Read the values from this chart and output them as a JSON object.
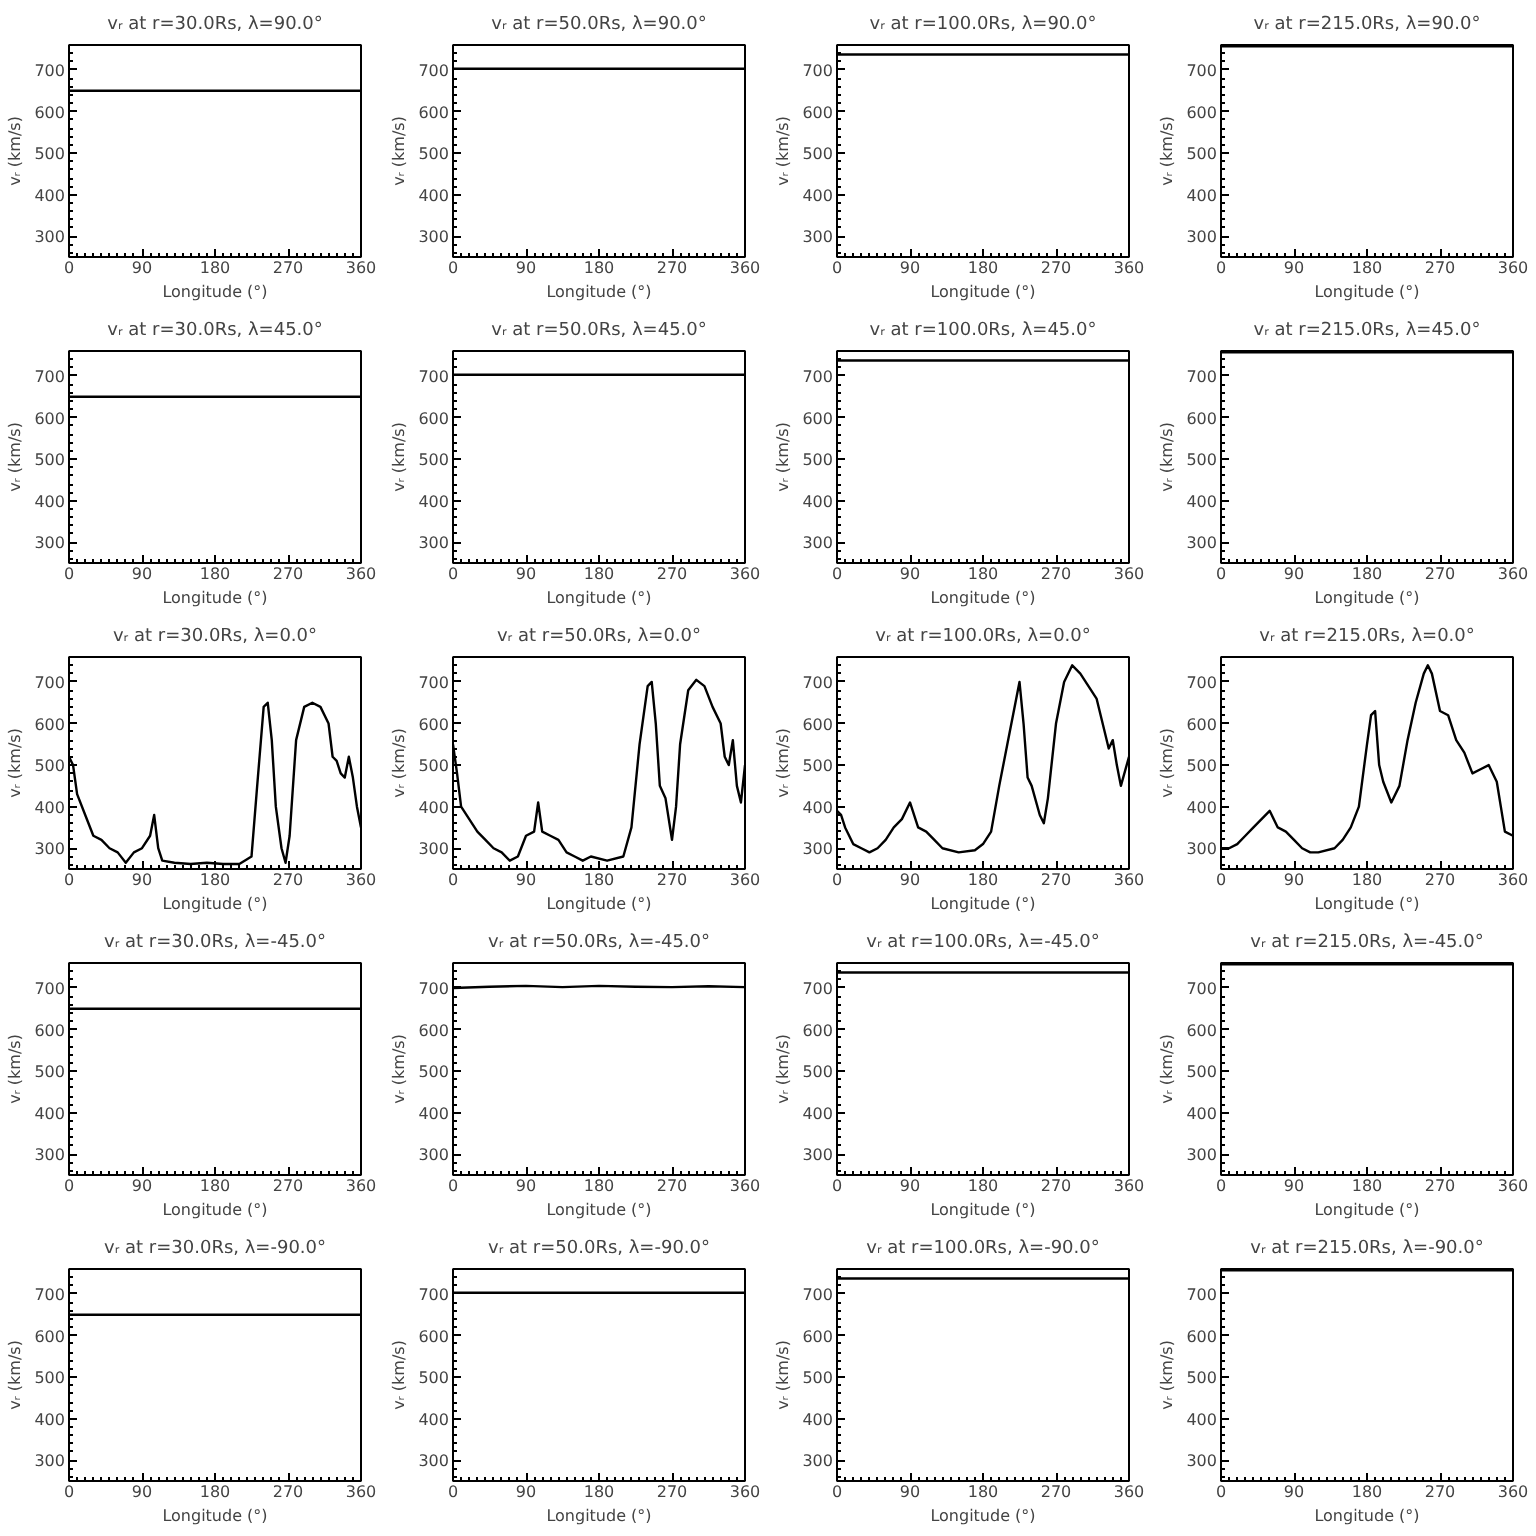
{
  "chart_data": [
    {
      "type": "line",
      "title": "vᵣ at r=30.0Rs, λ=90.0°",
      "xlabel": "Longitude (°)",
      "ylabel": "vᵣ (km/s)",
      "x": [
        0,
        360
      ],
      "values": [
        650,
        650
      ],
      "color": "#000000",
      "xlim": [
        0,
        360
      ],
      "ylim": [
        250,
        760
      ],
      "xticks": [
        0,
        90,
        180,
        270,
        360
      ],
      "yticks": [
        300,
        400,
        500,
        600,
        700
      ],
      "grid": false
    },
    {
      "type": "line",
      "title": "vᵣ at r=50.0Rs, λ=90.0°",
      "xlabel": "Longitude (°)",
      "ylabel": "vᵣ (km/s)",
      "x": [
        0,
        360
      ],
      "values": [
        703,
        703
      ],
      "color": "#000000",
      "xlim": [
        0,
        360
      ],
      "ylim": [
        250,
        760
      ],
      "xticks": [
        0,
        90,
        180,
        270,
        360
      ],
      "yticks": [
        300,
        400,
        500,
        600,
        700
      ],
      "grid": false
    },
    {
      "type": "line",
      "title": "vᵣ at r=100.0Rs, λ=90.0°",
      "xlabel": "Longitude (°)",
      "ylabel": "vᵣ (km/s)",
      "x": [
        0,
        360
      ],
      "values": [
        737,
        737
      ],
      "color": "#000000",
      "xlim": [
        0,
        360
      ],
      "ylim": [
        250,
        760
      ],
      "xticks": [
        0,
        90,
        180,
        270,
        360
      ],
      "yticks": [
        300,
        400,
        500,
        600,
        700
      ],
      "grid": false
    },
    {
      "type": "line",
      "title": "vᵣ at r=215.0Rs, λ=90.0°",
      "xlabel": "Longitude (°)",
      "ylabel": "vᵣ (km/s)",
      "x": [
        0,
        360
      ],
      "values": [
        757,
        757
      ],
      "color": "#000000",
      "xlim": [
        0,
        360
      ],
      "ylim": [
        250,
        760
      ],
      "xticks": [
        0,
        90,
        180,
        270,
        360
      ],
      "yticks": [
        300,
        400,
        500,
        600,
        700
      ],
      "grid": false
    },
    {
      "type": "line",
      "title": "vᵣ at r=30.0Rs, λ=45.0°",
      "xlabel": "Longitude (°)",
      "ylabel": "vᵣ (km/s)",
      "x": [
        0,
        360
      ],
      "values": [
        650,
        650
      ],
      "color": "#000000",
      "xlim": [
        0,
        360
      ],
      "ylim": [
        250,
        760
      ],
      "xticks": [
        0,
        90,
        180,
        270,
        360
      ],
      "yticks": [
        300,
        400,
        500,
        600,
        700
      ],
      "grid": false
    },
    {
      "type": "line",
      "title": "vᵣ at r=50.0Rs, λ=45.0°",
      "xlabel": "Longitude (°)",
      "ylabel": "vᵣ (km/s)",
      "x": [
        0,
        360
      ],
      "values": [
        703,
        703
      ],
      "color": "#000000",
      "xlim": [
        0,
        360
      ],
      "ylim": [
        250,
        760
      ],
      "xticks": [
        0,
        90,
        180,
        270,
        360
      ],
      "yticks": [
        300,
        400,
        500,
        600,
        700
      ],
      "grid": false
    },
    {
      "type": "line",
      "title": "vᵣ at r=100.0Rs, λ=45.0°",
      "xlabel": "Longitude (°)",
      "ylabel": "vᵣ (km/s)",
      "x": [
        0,
        360
      ],
      "values": [
        737,
        737
      ],
      "color": "#000000",
      "xlim": [
        0,
        360
      ],
      "ylim": [
        250,
        760
      ],
      "xticks": [
        0,
        90,
        180,
        270,
        360
      ],
      "yticks": [
        300,
        400,
        500,
        600,
        700
      ],
      "grid": false
    },
    {
      "type": "line",
      "title": "vᵣ at r=215.0Rs, λ=45.0°",
      "xlabel": "Longitude (°)",
      "ylabel": "vᵣ (km/s)",
      "x": [
        0,
        360
      ],
      "values": [
        757,
        757
      ],
      "color": "#000000",
      "xlim": [
        0,
        360
      ],
      "ylim": [
        250,
        760
      ],
      "xticks": [
        0,
        90,
        180,
        270,
        360
      ],
      "yticks": [
        300,
        400,
        500,
        600,
        700
      ],
      "grid": false
    },
    {
      "type": "line",
      "title": "vᵣ at r=30.0Rs, λ=0.0°",
      "xlabel": "Longitude (°)",
      "ylabel": "vᵣ (km/s)",
      "x": [
        0,
        5,
        10,
        20,
        30,
        40,
        50,
        60,
        70,
        80,
        90,
        100,
        105,
        110,
        115,
        130,
        150,
        170,
        190,
        210,
        225,
        232,
        240,
        245,
        250,
        255,
        262,
        267,
        272,
        280,
        290,
        300,
        310,
        320,
        325,
        330,
        335,
        340,
        345,
        350,
        355,
        360
      ],
      "values": [
        520,
        500,
        430,
        380,
        330,
        320,
        300,
        290,
        265,
        290,
        300,
        330,
        380,
        300,
        270,
        265,
        262,
        265,
        262,
        262,
        280,
        450,
        640,
        650,
        560,
        400,
        300,
        265,
        330,
        560,
        640,
        650,
        640,
        600,
        520,
        510,
        480,
        470,
        520,
        470,
        400,
        350
      ],
      "color": "#000000",
      "xlim": [
        0,
        360
      ],
      "ylim": [
        250,
        760
      ],
      "xticks": [
        0,
        90,
        180,
        270,
        360
      ],
      "yticks": [
        300,
        400,
        500,
        600,
        700
      ],
      "grid": false
    },
    {
      "type": "line",
      "title": "vᵣ at r=50.0Rs, λ=0.0°",
      "xlabel": "Longitude (°)",
      "ylabel": "vᵣ (km/s)",
      "x": [
        0,
        5,
        10,
        20,
        30,
        40,
        50,
        60,
        70,
        80,
        90,
        100,
        105,
        110,
        120,
        130,
        140,
        150,
        160,
        170,
        190,
        210,
        220,
        230,
        240,
        245,
        250,
        255,
        262,
        270,
        275,
        280,
        290,
        300,
        310,
        320,
        330,
        335,
        340,
        345,
        350,
        355,
        360
      ],
      "values": [
        550,
        480,
        400,
        370,
        340,
        320,
        300,
        290,
        270,
        280,
        330,
        340,
        410,
        340,
        330,
        320,
        290,
        280,
        270,
        280,
        270,
        280,
        350,
        550,
        690,
        700,
        600,
        450,
        420,
        320,
        400,
        550,
        680,
        705,
        690,
        640,
        600,
        520,
        500,
        560,
        450,
        410,
        500
      ],
      "color": "#000000",
      "xlim": [
        0,
        360
      ],
      "ylim": [
        250,
        760
      ],
      "xticks": [
        0,
        90,
        180,
        270,
        360
      ],
      "yticks": [
        300,
        400,
        500,
        600,
        700
      ],
      "grid": false
    },
    {
      "type": "line",
      "title": "vᵣ at r=100.0Rs, λ=0.0°",
      "xlabel": "Longitude (°)",
      "ylabel": "vᵣ (km/s)",
      "x": [
        0,
        5,
        10,
        20,
        30,
        40,
        50,
        60,
        70,
        80,
        90,
        100,
        110,
        120,
        130,
        150,
        170,
        180,
        190,
        200,
        210,
        220,
        225,
        230,
        235,
        240,
        250,
        255,
        260,
        270,
        280,
        290,
        300,
        310,
        320,
        330,
        335,
        340,
        345,
        350,
        360
      ],
      "values": [
        390,
        380,
        350,
        310,
        300,
        290,
        300,
        320,
        350,
        370,
        410,
        350,
        340,
        320,
        300,
        290,
        295,
        310,
        340,
        450,
        550,
        650,
        700,
        600,
        470,
        450,
        380,
        360,
        420,
        600,
        700,
        740,
        720,
        690,
        660,
        580,
        540,
        560,
        500,
        450,
        520
      ],
      "color": "#000000",
      "xlim": [
        0,
        360
      ],
      "ylim": [
        250,
        760
      ],
      "xticks": [
        0,
        90,
        180,
        270,
        360
      ],
      "yticks": [
        300,
        400,
        500,
        600,
        700
      ],
      "grid": false
    },
    {
      "type": "line",
      "title": "vᵣ at r=215.0Rs, λ=0.0°",
      "xlabel": "Longitude (°)",
      "ylabel": "vᵣ (km/s)",
      "x": [
        0,
        10,
        20,
        30,
        40,
        50,
        60,
        70,
        80,
        90,
        100,
        110,
        120,
        140,
        150,
        160,
        170,
        180,
        185,
        190,
        195,
        200,
        210,
        220,
        230,
        240,
        250,
        255,
        260,
        270,
        280,
        290,
        300,
        310,
        320,
        330,
        340,
        345,
        350,
        360
      ],
      "values": [
        300,
        300,
        310,
        330,
        350,
        370,
        390,
        350,
        340,
        320,
        300,
        290,
        290,
        300,
        320,
        350,
        400,
        550,
        620,
        630,
        500,
        460,
        410,
        450,
        560,
        650,
        720,
        740,
        720,
        630,
        620,
        560,
        530,
        480,
        490,
        500,
        460,
        400,
        340,
        330
      ],
      "color": "#000000",
      "xlim": [
        0,
        360
      ],
      "ylim": [
        250,
        760
      ],
      "xticks": [
        0,
        90,
        180,
        270,
        360
      ],
      "yticks": [
        300,
        400,
        500,
        600,
        700
      ],
      "grid": false
    },
    {
      "type": "line",
      "title": "vᵣ at r=30.0Rs, λ=-45.0°",
      "xlabel": "Longitude (°)",
      "ylabel": "vᵣ (km/s)",
      "x": [
        0,
        360
      ],
      "values": [
        650,
        650
      ],
      "color": "#000000",
      "xlim": [
        0,
        360
      ],
      "ylim": [
        250,
        760
      ],
      "xticks": [
        0,
        90,
        180,
        270,
        360
      ],
      "yticks": [
        300,
        400,
        500,
        600,
        700
      ],
      "grid": false
    },
    {
      "type": "line",
      "title": "vᵣ at r=50.0Rs, λ=-45.0°",
      "xlabel": "Longitude (°)",
      "ylabel": "vᵣ (km/s)",
      "x": [
        0,
        45,
        90,
        135,
        180,
        225,
        270,
        315,
        360
      ],
      "values": [
        700,
        703,
        705,
        702,
        705,
        703,
        702,
        704,
        702
      ],
      "color": "#000000",
      "xlim": [
        0,
        360
      ],
      "ylim": [
        250,
        760
      ],
      "xticks": [
        0,
        90,
        180,
        270,
        360
      ],
      "yticks": [
        300,
        400,
        500,
        600,
        700
      ],
      "grid": false
    },
    {
      "type": "line",
      "title": "vᵣ at r=100.0Rs, λ=-45.0°",
      "xlabel": "Longitude (°)",
      "ylabel": "vᵣ (km/s)",
      "x": [
        0,
        360
      ],
      "values": [
        737,
        737
      ],
      "color": "#000000",
      "xlim": [
        0,
        360
      ],
      "ylim": [
        250,
        760
      ],
      "xticks": [
        0,
        90,
        180,
        270,
        360
      ],
      "yticks": [
        300,
        400,
        500,
        600,
        700
      ],
      "grid": false
    },
    {
      "type": "line",
      "title": "vᵣ at r=215.0Rs, λ=-45.0°",
      "xlabel": "Longitude (°)",
      "ylabel": "vᵣ (km/s)",
      "x": [
        0,
        360
      ],
      "values": [
        757,
        757
      ],
      "color": "#000000",
      "xlim": [
        0,
        360
      ],
      "ylim": [
        250,
        760
      ],
      "xticks": [
        0,
        90,
        180,
        270,
        360
      ],
      "yticks": [
        300,
        400,
        500,
        600,
        700
      ],
      "grid": false
    },
    {
      "type": "line",
      "title": "vᵣ at r=30.0Rs, λ=-90.0°",
      "xlabel": "Longitude (°)",
      "ylabel": "vᵣ (km/s)",
      "x": [
        0,
        360
      ],
      "values": [
        650,
        650
      ],
      "color": "#000000",
      "xlim": [
        0,
        360
      ],
      "ylim": [
        250,
        760
      ],
      "xticks": [
        0,
        90,
        180,
        270,
        360
      ],
      "yticks": [
        300,
        400,
        500,
        600,
        700
      ],
      "grid": false
    },
    {
      "type": "line",
      "title": "vᵣ at r=50.0Rs, λ=-90.0°",
      "xlabel": "Longitude (°)",
      "ylabel": "vᵣ (km/s)",
      "x": [
        0,
        360
      ],
      "values": [
        703,
        703
      ],
      "color": "#000000",
      "xlim": [
        0,
        360
      ],
      "ylim": [
        250,
        760
      ],
      "xticks": [
        0,
        90,
        180,
        270,
        360
      ],
      "yticks": [
        300,
        400,
        500,
        600,
        700
      ],
      "grid": false
    },
    {
      "type": "line",
      "title": "vᵣ at r=100.0Rs, λ=-90.0°",
      "xlabel": "Longitude (°)",
      "ylabel": "vᵣ (km/s)",
      "x": [
        0,
        360
      ],
      "values": [
        737,
        737
      ],
      "color": "#000000",
      "xlim": [
        0,
        360
      ],
      "ylim": [
        250,
        760
      ],
      "xticks": [
        0,
        90,
        180,
        270,
        360
      ],
      "yticks": [
        300,
        400,
        500,
        600,
        700
      ],
      "grid": false
    },
    {
      "type": "line",
      "title": "vᵣ at r=215.0Rs, λ=-90.0°",
      "xlabel": "Longitude (°)",
      "ylabel": "vᵣ (km/s)",
      "x": [
        0,
        360
      ],
      "values": [
        757,
        757
      ],
      "color": "#000000",
      "xlim": [
        0,
        360
      ],
      "ylim": [
        250,
        760
      ],
      "xticks": [
        0,
        90,
        180,
        270,
        360
      ],
      "yticks": [
        300,
        400,
        500,
        600,
        700
      ],
      "grid": false
    }
  ]
}
